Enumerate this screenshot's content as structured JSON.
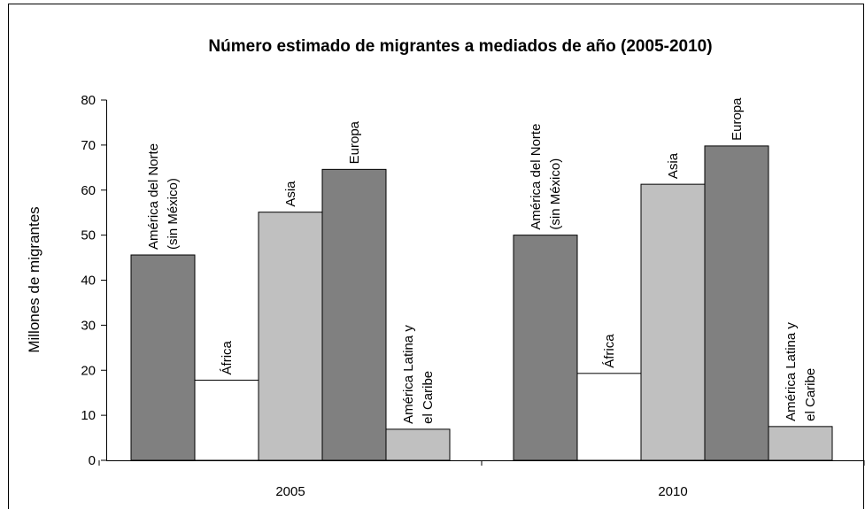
{
  "chart_data": {
    "type": "bar",
    "title": "Número estimado de migrantes a mediados de año (2005-2010)",
    "y_label": "Millones de migrantes",
    "categories": [
      "2005",
      "2010"
    ],
    "series": [
      {
        "name": "América del Norte (sin México)",
        "color": "#808080",
        "values": [
          45.6,
          50.0
        ]
      },
      {
        "name": "África",
        "color": "#ffffff",
        "values": [
          17.8,
          19.3
        ]
      },
      {
        "name": "Asia",
        "color": "#c0c0c0",
        "values": [
          55.1,
          61.3
        ]
      },
      {
        "name": "Europa",
        "color": "#808080",
        "values": [
          64.6,
          69.8
        ]
      },
      {
        "name": "América Latina y el Caribe",
        "color": "#c0c0c0",
        "values": [
          6.9,
          7.5
        ]
      }
    ],
    "ylim": [
      0,
      80
    ],
    "yticks": [
      0,
      10,
      20,
      30,
      40,
      50,
      60,
      70,
      80
    ],
    "grid": false
  }
}
